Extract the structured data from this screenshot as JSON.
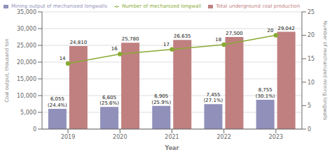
{
  "chart_data": {
    "type": "bar",
    "categories": [
      "2019",
      "2020",
      "2021",
      "2022",
      "2023"
    ],
    "xlabel": "Year",
    "ylabel": "Coal output, thousand ton",
    "y2label": "Number of mechanized mining longwalls",
    "series": [
      {
        "name": "Mining output of mechanized longwalls",
        "type": "bar",
        "color": "#9090bb",
        "values": [
          6055,
          6605,
          6905,
          7455,
          8755
        ],
        "value_labels": [
          "6,055\n(24.4%)",
          "6,605\n(25.6%)",
          "6,905\n(25.9%)",
          "7,455\n(27.1%)",
          "8,755\n(30.1%)"
        ]
      },
      {
        "name": "Total underground coal production",
        "type": "bar",
        "color": "#c08080",
        "values": [
          24810,
          25780,
          26635,
          27500,
          29042
        ],
        "value_labels": [
          "24,810",
          "25,780",
          "26,635",
          "27,500",
          "29,042"
        ]
      },
      {
        "name": "Number of mechanized longwall",
        "type": "line",
        "axis": "y2",
        "color": "#88aa33",
        "marker": "circle",
        "values": [
          14,
          16,
          17,
          18,
          20
        ]
      }
    ],
    "ylim": [
      0,
      35000
    ],
    "yticks": [
      {
        "value": 0,
        "label": "0"
      },
      {
        "value": 5000,
        "label": "5,000"
      },
      {
        "value": 10000,
        "label": "10,000"
      },
      {
        "value": 15000,
        "label": "15,000"
      },
      {
        "value": 20000,
        "label": "20,000"
      },
      {
        "value": 25000,
        "label": "25,000"
      },
      {
        "value": 30000,
        "label": "30,000"
      },
      {
        "value": 35000,
        "label": "35,000"
      }
    ],
    "y2lim": [
      0,
      25
    ],
    "y2ticks": [
      0,
      5,
      10,
      15,
      20,
      25
    ],
    "grid": true,
    "legend": "upper left",
    "data_labels": true
  }
}
